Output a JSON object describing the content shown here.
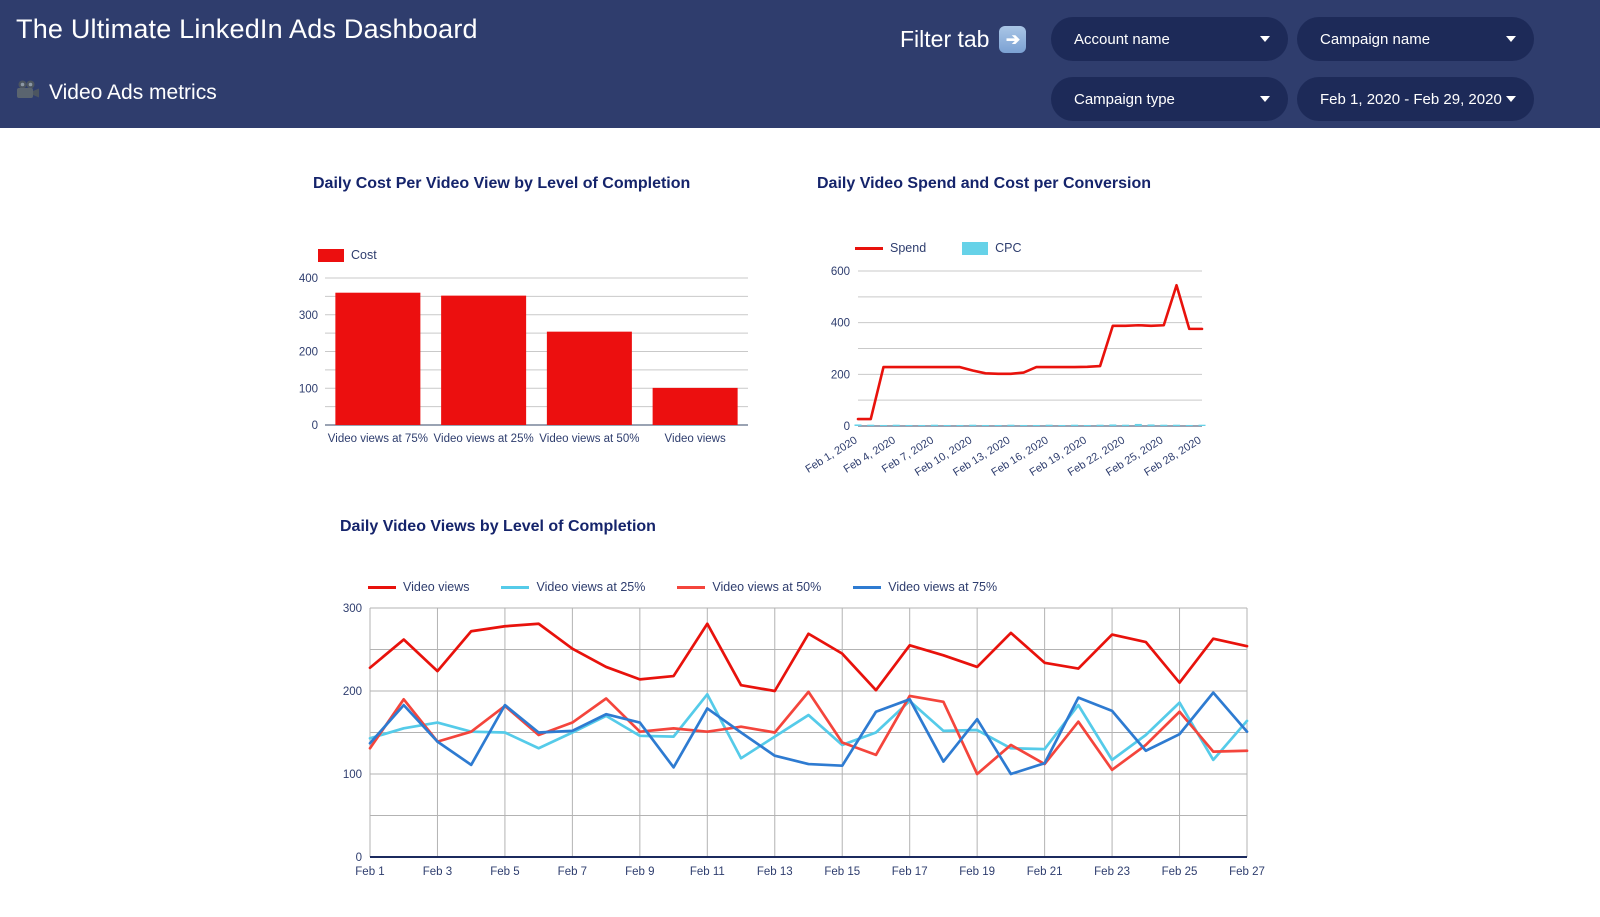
{
  "header": {
    "title": "The Ultimate LinkedIn Ads Dashboard",
    "subtitle": "Video Ads metrics",
    "subtitle_icon": "movie-camera",
    "filter_label": "Filter tab",
    "filter_arrow_icon": "arrow-right",
    "filters": [
      {
        "id": "account",
        "label": "Account name"
      },
      {
        "id": "campaign_name",
        "label": "Campaign name"
      },
      {
        "id": "campaign_type",
        "label": "Campaign type"
      },
      {
        "id": "date_range",
        "label": "Feb 1, 2020 - Feb 29, 2020"
      }
    ],
    "colors": {
      "background": "#2f3d6d",
      "pill": "#1d2a58",
      "text": "#ffffff"
    }
  },
  "chart_data": [
    {
      "type": "bar",
      "title": "Daily Cost Per Video View by Level of Completion",
      "categories": [
        "Video views at 75%",
        "Video views at 25%",
        "Video views at 50%",
        "Video views"
      ],
      "series": [
        {
          "name": "Cost",
          "swatch": "rect",
          "color": "#ec0f0f",
          "values": [
            360,
            352,
            254,
            101
          ]
        }
      ],
      "ylim": [
        0,
        400
      ],
      "ytick_step": 100,
      "grid_step": 50,
      "grid": true,
      "legend_position": "top-left"
    },
    {
      "type": "combo",
      "title": "Daily Video Spend and Cost per Conversion",
      "n_points": 28,
      "xticks": [
        "Feb 1, 2020",
        "Feb 4, 2020",
        "Feb 7, 2020",
        "Feb 10, 2020",
        "Feb 13, 2020",
        "Feb 16, 2020",
        "Feb 19, 2020",
        "Feb 22, 2020",
        "Feb 25, 2020",
        "Feb 28, 2020"
      ],
      "xtick_indices": [
        0,
        3,
        6,
        9,
        12,
        15,
        18,
        21,
        24,
        27
      ],
      "series": [
        {
          "name": "Spend",
          "swatch": "line",
          "kind": "line",
          "color": "#e8120c",
          "values": [
            27,
            27,
            228,
            228,
            228,
            228,
            228,
            228,
            228,
            215,
            204,
            202,
            202,
            207,
            228,
            228,
            228,
            228,
            229,
            232,
            388,
            388,
            390,
            388,
            390,
            545,
            376,
            376
          ]
        },
        {
          "name": "CPC",
          "swatch": "rect",
          "kind": "bar",
          "color": "#66d2e8",
          "values": [
            6,
            5,
            4,
            5,
            4,
            4,
            5,
            4,
            4,
            5,
            4,
            4,
            5,
            4,
            4,
            5,
            4,
            5,
            4,
            5,
            6,
            5,
            8,
            6,
            5,
            5,
            4,
            5
          ]
        }
      ],
      "ylim": [
        0,
        600
      ],
      "ytick_step": 200,
      "grid_step": 100,
      "grid": true,
      "legend_position": "top-left"
    },
    {
      "type": "line",
      "title": "Daily Video Views by Level of Completion",
      "n_points": 27,
      "xticks": [
        "Feb 1",
        "Feb 3",
        "Feb 5",
        "Feb 7",
        "Feb 9",
        "Feb 11",
        "Feb 13",
        "Feb 15",
        "Feb 17",
        "Feb 19",
        "Feb 21",
        "Feb 23",
        "Feb 25",
        "Feb 27"
      ],
      "xtick_indices": [
        0,
        2,
        4,
        6,
        8,
        10,
        12,
        14,
        16,
        18,
        20,
        22,
        24,
        26
      ],
      "series": [
        {
          "name": "Video views",
          "swatch": "line",
          "kind": "line",
          "color": "#e8120c",
          "values": [
            228,
            262,
            224,
            272,
            278,
            281,
            251,
            229,
            214,
            218,
            281,
            207,
            200,
            269,
            245,
            201,
            255,
            243,
            229,
            270,
            234,
            227,
            268,
            259,
            210,
            263,
            254
          ]
        },
        {
          "name": "Video views at 25%",
          "swatch": "line",
          "kind": "line",
          "color": "#55cbe9",
          "values": [
            143,
            155,
            162,
            151,
            150,
            131,
            150,
            170,
            146,
            145,
            196,
            119,
            145,
            171,
            135,
            150,
            188,
            152,
            153,
            131,
            130,
            183,
            117,
            147,
            186,
            117,
            164
          ]
        },
        {
          "name": "Video views at 50%",
          "swatch": "line",
          "kind": "line",
          "color": "#f4453c",
          "values": [
            131,
            190,
            139,
            151,
            182,
            147,
            162,
            191,
            151,
            155,
            151,
            157,
            150,
            199,
            138,
            123,
            194,
            187,
            100,
            135,
            112,
            163,
            105,
            135,
            175,
            127,
            128
          ]
        },
        {
          "name": "Video views at 75%",
          "swatch": "line",
          "kind": "line",
          "color": "#2e7bd1",
          "values": [
            137,
            183,
            139,
            111,
            183,
            150,
            152,
            172,
            162,
            108,
            179,
            150,
            122,
            112,
            110,
            175,
            190,
            115,
            166,
            100,
            113,
            192,
            176,
            128,
            148,
            198,
            151
          ]
        }
      ],
      "ylim": [
        0,
        300
      ],
      "ytick_step": 100,
      "grid_step": 50,
      "grid": true,
      "legend_position": "top-left"
    }
  ]
}
